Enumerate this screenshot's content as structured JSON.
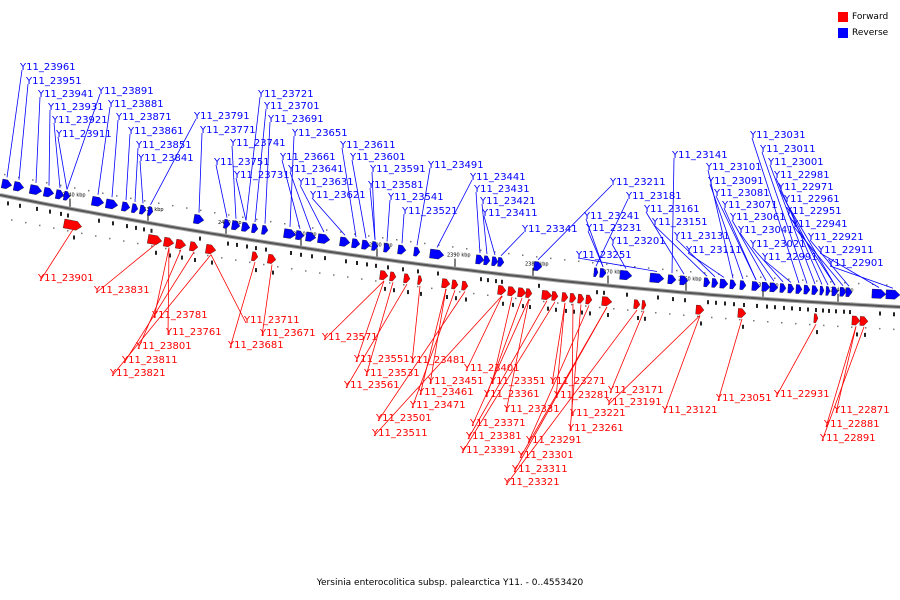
{
  "caption": "Yersinia enterocolitica subsp. palearctica Y11. - 0..4553420",
  "legend": [
    {
      "label": "Forward",
      "color": "#ff0000"
    },
    {
      "label": "Reverse",
      "color": "#0000ff"
    }
  ],
  "colors": {
    "forward": "#ff0000",
    "reverse": "#0000ff",
    "backbone": "#555555"
  },
  "scale_ticks": [
    "2440 kbp",
    "2430 kbp",
    "2420 kbp",
    "2410 kbp",
    "2400 kbp",
    "2390 kbp",
    "2380 kbp",
    "2370 kbp",
    "2360 kbp",
    "2350 kbp",
    "2340 kbp"
  ],
  "reverse_labels": [
    "Y11_23961",
    "Y11_23951",
    "Y11_23941",
    "Y11_23931",
    "Y11_23921",
    "Y11_23911",
    "Y11_23891",
    "Y11_23881",
    "Y11_23871",
    "Y11_23861",
    "Y11_23851",
    "Y11_23841",
    "Y11_23791",
    "Y11_23771",
    "Y11_23751",
    "Y11_23741",
    "Y11_23731",
    "Y11_23721",
    "Y11_23701",
    "Y11_23691",
    "Y11_23651",
    "Y11_23661",
    "Y11_23641",
    "Y11_23631",
    "Y11_23621",
    "Y11_23611",
    "Y11_23601",
    "Y11_23591",
    "Y11_23581",
    "Y11_23541",
    "Y11_23521",
    "Y11_23491",
    "Y11_23441",
    "Y11_23431",
    "Y11_23421",
    "Y11_23411",
    "Y11_23341",
    "Y11_23211",
    "Y11_23181",
    "Y11_23241",
    "Y11_23231",
    "Y11_23201",
    "Y11_23251",
    "Y11_23141",
    "Y11_23161",
    "Y11_23151",
    "Y11_23131",
    "Y11_23111",
    "Y11_23101",
    "Y11_23091",
    "Y11_23081",
    "Y11_23071",
    "Y11_23061",
    "Y11_23041",
    "Y11_23021",
    "Y11_22991",
    "Y11_23031",
    "Y11_23011",
    "Y11_23001",
    "Y11_22981",
    "Y11_22971",
    "Y11_22961",
    "Y11_22951",
    "Y11_22941",
    "Y11_22921",
    "Y11_22911",
    "Y11_22901"
  ],
  "forward_labels": [
    "Y11_23901",
    "Y11_23831",
    "Y11_23781",
    "Y11_23761",
    "Y11_23801",
    "Y11_23811",
    "Y11_23821",
    "Y11_23711",
    "Y11_23681",
    "Y11_23671",
    "Y11_23571",
    "Y11_23551",
    "Y11_23531",
    "Y11_23561",
    "Y11_23481",
    "Y11_23451",
    "Y11_23461",
    "Y11_23471",
    "Y11_23501",
    "Y11_23511",
    "Y11_23401",
    "Y11_23351",
    "Y11_23361",
    "Y11_23331",
    "Y11_23371",
    "Y11_23381",
    "Y11_23391",
    "Y11_23271",
    "Y11_23281",
    "Y11_23221",
    "Y11_23261",
    "Y11_23291",
    "Y11_23301",
    "Y11_23311",
    "Y11_23321",
    "Y11_23171",
    "Y11_23191",
    "Y11_23121",
    "Y11_23051",
    "Y11_22931",
    "Y11_22871",
    "Y11_22881",
    "Y11_22891"
  ]
}
